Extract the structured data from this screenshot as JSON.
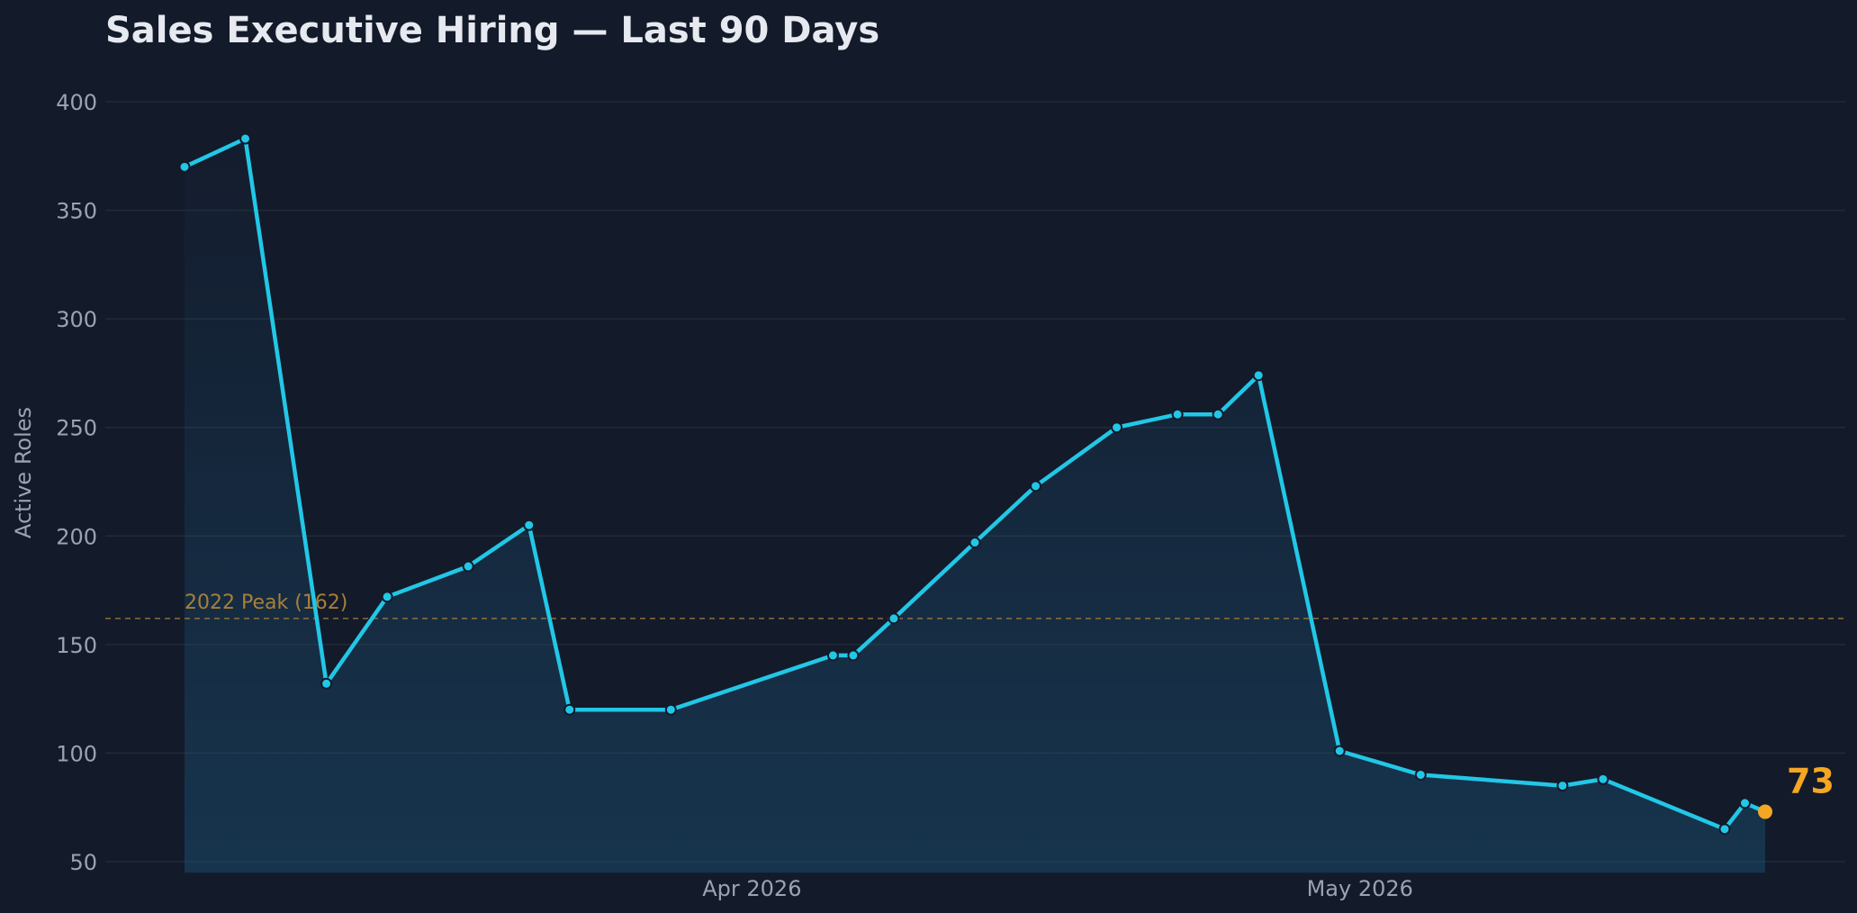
{
  "chart_data": {
    "type": "area",
    "title": "Sales Executive Hiring — Last 90 Days",
    "xlabel": "",
    "ylabel": "Active Roles",
    "ylim": [
      45,
      400
    ],
    "yticks": [
      50,
      100,
      150,
      200,
      250,
      300,
      350,
      400
    ],
    "xticks": [
      {
        "date": "2026-04-01",
        "label": "Apr 2026"
      },
      {
        "date": "2026-05-01",
        "label": "May 2026"
      }
    ],
    "grid": true,
    "reference_line": {
      "value": 162,
      "label": "2022 Peak (162)",
      "color": "#b8893a"
    },
    "last_value_label": "73",
    "colors": {
      "line": "#22c7e6",
      "highlight": "#f5a623",
      "background": "#131a2a"
    },
    "series": [
      {
        "x": [
          "2026-03-04",
          "2026-03-07",
          "2026-03-11",
          "2026-03-14",
          "2026-03-18",
          "2026-03-21",
          "2026-03-23",
          "2026-03-28",
          "2026-04-05",
          "2026-04-06",
          "2026-04-08",
          "2026-04-12",
          "2026-04-15",
          "2026-04-19",
          "2026-04-22",
          "2026-04-24",
          "2026-04-26",
          "2026-04-30",
          "2026-05-04",
          "2026-05-11",
          "2026-05-13",
          "2026-05-19",
          "2026-05-20",
          "2026-05-21"
        ],
        "values": [
          370,
          383,
          132,
          172,
          186,
          205,
          120,
          120,
          145,
          145,
          162,
          197,
          223,
          250,
          256,
          256,
          274,
          101,
          90,
          85,
          88,
          65,
          77,
          73
        ]
      }
    ]
  }
}
